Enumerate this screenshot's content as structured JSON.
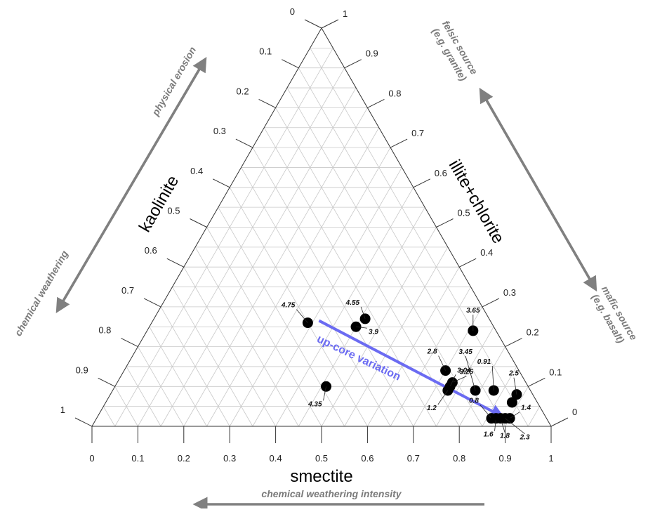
{
  "chart_data": {
    "type": "scatter",
    "subtype": "ternary",
    "axes": {
      "bottom": {
        "title": "smectite",
        "ticks": [
          "0",
          "0.1",
          "0.2",
          "0.3",
          "0.4",
          "0.5",
          "0.6",
          "0.7",
          "0.8",
          "0.9",
          "1"
        ]
      },
      "left": {
        "title": "kaolinite",
        "ticks": [
          "0",
          "0.1",
          "0.2",
          "0.3",
          "0.4",
          "0.5",
          "0.6",
          "0.7",
          "0.8",
          "0.9",
          "1"
        ]
      },
      "right": {
        "title": "illite+chlorite",
        "ticks": [
          "1",
          "0.9",
          "0.8",
          "0.7",
          "0.6",
          "0.5",
          "0.4",
          "0.3",
          "0.2",
          "0.1",
          "0"
        ]
      }
    },
    "grid": true,
    "points": [
      {
        "label": "4.75",
        "smectite": 0.34,
        "illite_chlorite": 0.26
      },
      {
        "label": "4.55",
        "smectite": 0.46,
        "illite_chlorite": 0.27
      },
      {
        "label": "3.9",
        "smectite": 0.45,
        "illite_chlorite": 0.25
      },
      {
        "label": "3.65",
        "smectite": 0.71,
        "illite_chlorite": 0.24
      },
      {
        "label": "4.35",
        "smectite": 0.46,
        "illite_chlorite": 0.1
      },
      {
        "label": "2.8",
        "smectite": 0.7,
        "illite_chlorite": 0.14
      },
      {
        "label": "3.25",
        "smectite": 0.73,
        "illite_chlorite": 0.11
      },
      {
        "label": "3.04",
        "smectite": 0.73,
        "illite_chlorite": 0.1
      },
      {
        "label": "1.2",
        "smectite": 0.73,
        "illite_chlorite": 0.09
      },
      {
        "label": "3.45",
        "smectite": 0.79,
        "illite_chlorite": 0.09
      },
      {
        "label": "0.91",
        "smectite": 0.83,
        "illite_chlorite": 0.09
      },
      {
        "label": "2.5",
        "smectite": 0.885,
        "illite_chlorite": 0.08
      },
      {
        "label": "",
        "smectite": 0.885,
        "illite_chlorite": 0.06
      },
      {
        "label": "0.8",
        "smectite": 0.86,
        "illite_chlorite": 0.02
      },
      {
        "label": "1.4",
        "smectite": 0.9,
        "illite_chlorite": 0.02
      },
      {
        "label": "1.6",
        "smectite": 0.87,
        "illite_chlorite": 0.02
      },
      {
        "label": "1.8",
        "smectite": 0.88,
        "illite_chlorite": 0.02
      },
      {
        "label": "2.3",
        "smectite": 0.89,
        "illite_chlorite": 0.02
      }
    ],
    "trend_arrow": {
      "label": "up-core variation",
      "from": {
        "smectite": 0.34,
        "illite_chlorite": 0.26
      },
      "to": {
        "smectite": 0.87,
        "illite_chlorite": 0.03
      },
      "color": "#6b6bf2"
    }
  },
  "annotations": {
    "left_arrow_top": "physical erosion",
    "left_arrow_bottom": "chemical weathering",
    "right_arrow_top_line1": "felsic source",
    "right_arrow_top_line2": "(e.g. granite)",
    "right_arrow_bottom_line1": "mafic source",
    "right_arrow_bottom_line2": "(e.g. basalt)",
    "bottom_arrow": "chemical weathering intensity",
    "arrow_color": "#808080"
  }
}
